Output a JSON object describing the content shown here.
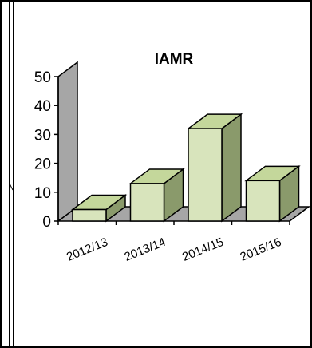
{
  "chart_data": {
    "type": "bar",
    "style": "3d-column",
    "title": "IAMR",
    "xlabel": "",
    "ylabel": "",
    "categories": [
      "2012/13",
      "2013/14",
      "2014/15",
      "2015/16"
    ],
    "values": [
      4,
      13,
      32,
      14
    ],
    "ylim": [
      0,
      50
    ],
    "yticks": [
      "0",
      "10",
      "20",
      "30",
      "40",
      "50"
    ],
    "grid": false,
    "legend": "none",
    "colors": {
      "bar_front": "#d8e4bc",
      "bar_top": "#c4d79b",
      "bar_side": "#8a9a6b",
      "wall": "#a6a6a6",
      "floor": "#a6a6a6",
      "axis": "#000000"
    }
  }
}
